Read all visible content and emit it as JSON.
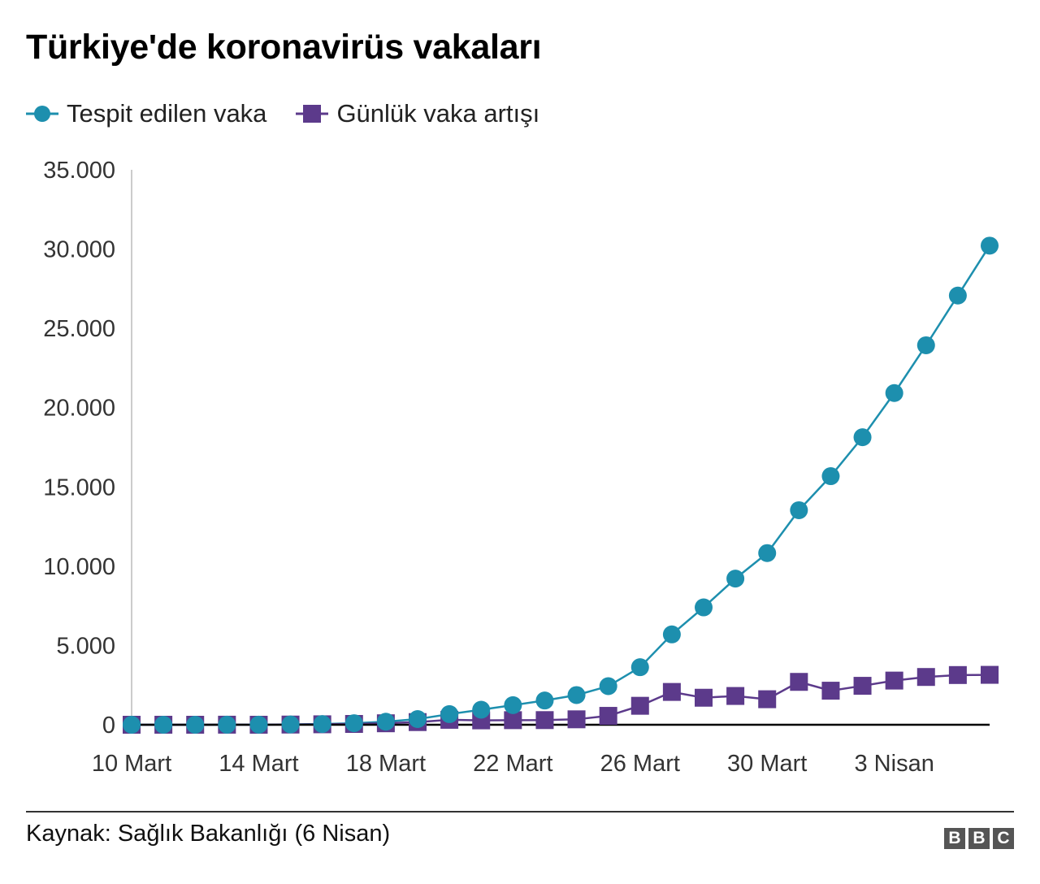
{
  "title": "Türkiye'de koronavirüs vakaları",
  "legend": [
    {
      "label": "Tespit edilen vaka",
      "color": "#1d8fae",
      "marker": "circle-icon"
    },
    {
      "label": "Günlük vaka artışı",
      "color": "#5c3a8b",
      "marker": "square-icon"
    }
  ],
  "source": "Kaynak: Sağlık Bakanlığı (6 Nisan)",
  "logo": [
    "B",
    "B",
    "C"
  ],
  "chart_data": {
    "type": "line",
    "title": "Türkiye'de koronavirüs vakaları",
    "xlabel": "",
    "ylabel": "",
    "ylim": [
      0,
      35000
    ],
    "yticks": [
      0,
      5000,
      10000,
      15000,
      20000,
      25000,
      30000,
      35000
    ],
    "ytick_labels": [
      "0",
      "5.000",
      "10.000",
      "15.000",
      "20.000",
      "25.000",
      "30.000",
      "35.000"
    ],
    "x": [
      "10 Mart",
      "11 Mart",
      "12 Mart",
      "13 Mart",
      "14 Mart",
      "15 Mart",
      "16 Mart",
      "17 Mart",
      "18 Mart",
      "19 Mart",
      "20 Mart",
      "21 Mart",
      "22 Mart",
      "23 Mart",
      "24 Mart",
      "25 Mart",
      "26 Mart",
      "27 Mart",
      "28 Mart",
      "29 Mart",
      "30 Mart",
      "31 Mart",
      "1 Nisan",
      "2 Nisan",
      "3 Nisan",
      "4 Nisan",
      "5 Nisan",
      "6 Nisan"
    ],
    "xtick_labels": [
      "10 Mart",
      "14 Mart",
      "18 Mart",
      "22 Mart",
      "26 Mart",
      "30 Mart",
      "3 Nisan"
    ],
    "series": [
      {
        "name": "Tespit edilen vaka",
        "color": "#1d8fae",
        "marker": "circle",
        "values": [
          0,
          1,
          1,
          5,
          6,
          18,
          47,
          98,
          191,
          359,
          670,
          947,
          1236,
          1529,
          1872,
          2433,
          3629,
          5698,
          7402,
          9217,
          10827,
          13531,
          15679,
          18135,
          20921,
          23934,
          27069,
          30217
        ]
      },
      {
        "name": "Günlük vaka artışı",
        "color": "#5c3a8b",
        "marker": "square",
        "values": [
          0,
          1,
          0,
          4,
          1,
          12,
          29,
          51,
          93,
          168,
          311,
          277,
          289,
          293,
          343,
          561,
          1196,
          2069,
          1704,
          1815,
          1610,
          2704,
          2148,
          2456,
          2786,
          3013,
          3135,
          3148
        ]
      }
    ],
    "grid": false,
    "legend_position": "top-left"
  }
}
